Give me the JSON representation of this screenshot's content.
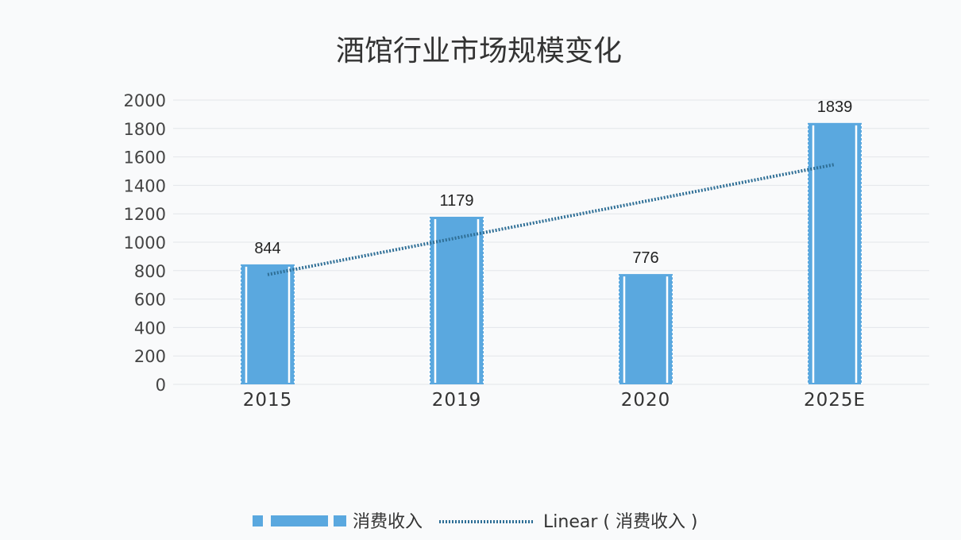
{
  "chart_data": {
    "type": "bar",
    "title": "酒馆行业市场规模变化",
    "categories": [
      "2015",
      "2019",
      "2020",
      "2025E"
    ],
    "series": [
      {
        "name": "消费收入",
        "values": [
          844,
          1179,
          776,
          1839
        ],
        "color": "#5aa8df"
      }
    ],
    "data_labels": [
      "844",
      "1179",
      "776",
      "1839"
    ],
    "trendline": {
      "name": "Linear ( 消费收入 )",
      "type": "linear",
      "style": "dotted",
      "color": "#2f6f96"
    },
    "ylim": [
      0,
      2000
    ],
    "yticks": [
      0,
      200,
      400,
      600,
      800,
      1000,
      1200,
      1400,
      1600,
      1800,
      2000
    ],
    "ytick_labels": [
      "0",
      "200",
      "400",
      "600",
      "800",
      "1000",
      "1200",
      "1400",
      "1600",
      "1800",
      "2000"
    ],
    "grid": true,
    "legend": "bottom"
  }
}
